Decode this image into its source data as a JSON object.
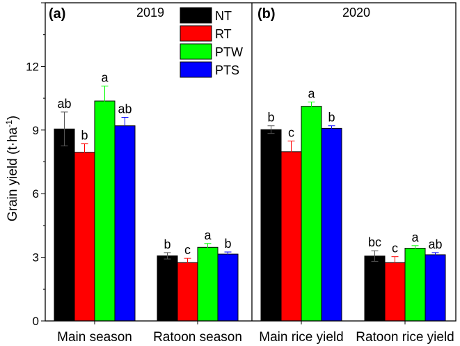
{
  "chart_data": {
    "type": "bar",
    "ylabel": "Grain yield (t·ha⁻¹)",
    "ylabel_main": "Grain yield (t·ha",
    "ylabel_sup": "-1",
    "ylabel_close": ")",
    "ylim": [
      0,
      15
    ],
    "yticks": [
      0,
      3,
      6,
      9,
      12
    ],
    "legend": {
      "position": "top-center",
      "entries": [
        {
          "name": "NT",
          "color": "#000000"
        },
        {
          "name": "RT",
          "color": "#ff0000"
        },
        {
          "name": "PTW",
          "color": "#00ff00"
        },
        {
          "name": "PTS",
          "color": "#0000ff"
        }
      ]
    },
    "panels": [
      {
        "tag": "(a)",
        "year": "2019",
        "categories": [
          "Main season",
          "Ratoon season"
        ],
        "series": [
          {
            "name": "NT",
            "values": [
              9.05,
              3.07
            ],
            "errors": [
              0.8,
              0.15
            ],
            "letters": [
              "ab",
              "b"
            ]
          },
          {
            "name": "RT",
            "values": [
              7.95,
              2.75
            ],
            "errors": [
              0.4,
              0.2
            ],
            "letters": [
              "b",
              "c"
            ]
          },
          {
            "name": "PTW",
            "values": [
              10.37,
              3.47
            ],
            "errors": [
              0.7,
              0.18
            ],
            "letters": [
              "a",
              "a"
            ]
          },
          {
            "name": "PTS",
            "values": [
              9.2,
              3.15
            ],
            "errors": [
              0.4,
              0.1
            ],
            "letters": [
              "ab",
              "b"
            ]
          }
        ]
      },
      {
        "tag": "(b)",
        "year": "2020",
        "categories": [
          "Main rice yield",
          "Ratoon rice yield"
        ],
        "series": [
          {
            "name": "NT",
            "values": [
              9.02,
              3.06
            ],
            "errors": [
              0.18,
              0.25
            ],
            "letters": [
              "b",
              "bc"
            ]
          },
          {
            "name": "RT",
            "values": [
              7.98,
              2.75
            ],
            "errors": [
              0.5,
              0.28
            ],
            "letters": [
              "c",
              "c"
            ]
          },
          {
            "name": "PTW",
            "values": [
              10.12,
              3.43
            ],
            "errors": [
              0.2,
              0.12
            ],
            "letters": [
              "a",
              "a"
            ]
          },
          {
            "name": "PTS",
            "values": [
              9.08,
              3.12
            ],
            "errors": [
              0.12,
              0.1
            ],
            "letters": [
              "b",
              "ab"
            ]
          }
        ]
      }
    ]
  }
}
